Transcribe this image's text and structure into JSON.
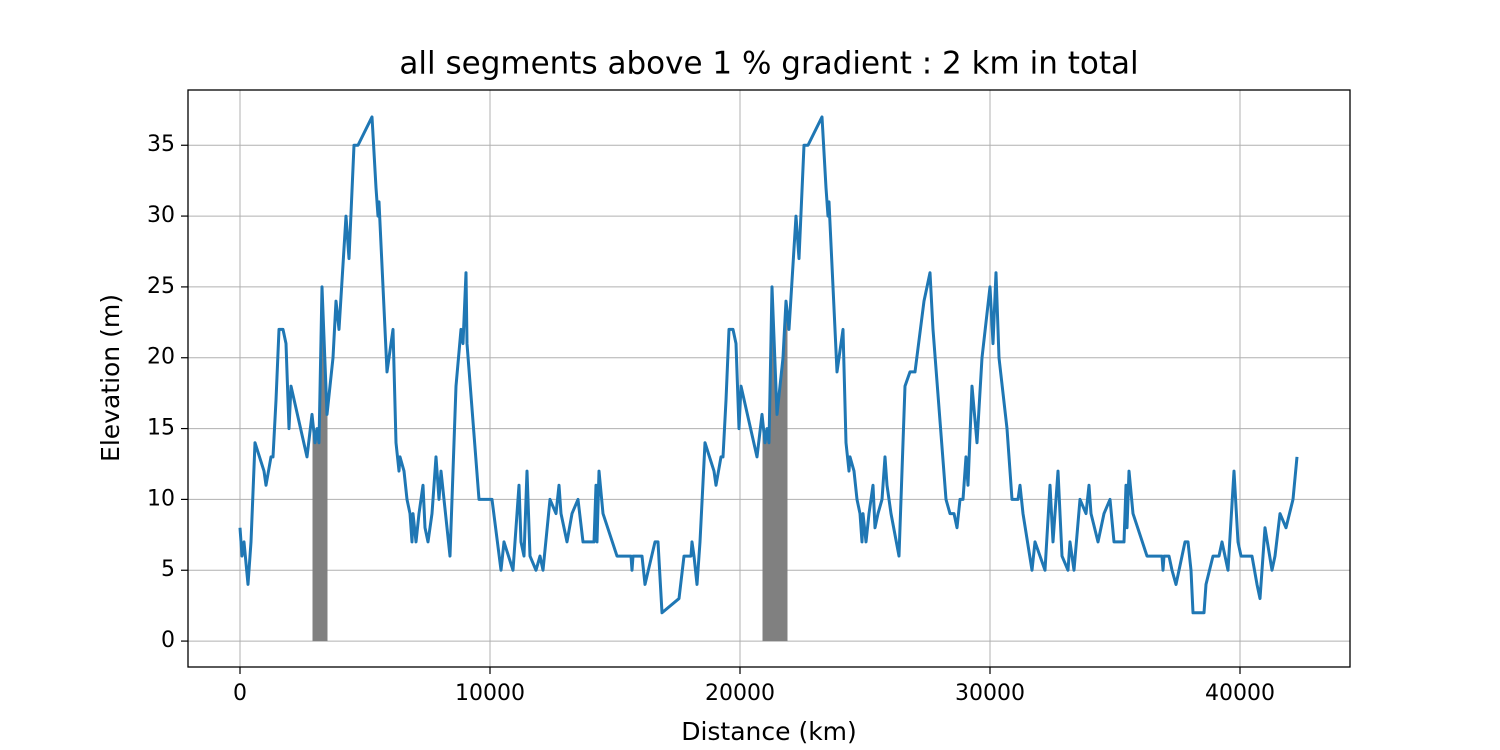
{
  "chart_data": {
    "type": "line",
    "title": "all segments above 1 % gradient : 2 km in total",
    "x_label": "Distance (km)",
    "y_label": "Elevation (m)",
    "x": [
      0,
      80,
      160,
      320,
      440,
      600,
      960,
      1040,
      1240,
      1320,
      1440,
      1560,
      1720,
      1840,
      1960,
      2040,
      2680,
      2880,
      3000,
      3080,
      3160,
      3280,
      3480,
      3720,
      3840,
      3960,
      4240,
      4360,
      4560,
      4720,
      5280,
      5440,
      5520,
      5560,
      5880,
      6120,
      6240,
      6360,
      6400,
      6560,
      6680,
      6800,
      6880,
      6920,
      7040,
      7160,
      7320,
      7400,
      7520,
      7680,
      7840,
      7960,
      8040,
      8400,
      8640,
      8840,
      8920,
      9040,
      9080,
      9560,
      9920,
      10080,
      10440,
      10560,
      10920,
      11160,
      11240,
      11360,
      11480,
      11600,
      11840,
      12000,
      12120,
      12400,
      12640,
      12760,
      12840,
      13080,
      13280,
      13520,
      13720,
      14160,
      14240,
      14280,
      14360,
      14520,
      15080,
      15640,
      15680,
      15720,
      16080,
      16200,
      16600,
      16720,
      16880,
      17560,
      17760,
      18040,
      18080,
      18160,
      18280,
      18400,
      18600,
      18960,
      19040,
      19240,
      19320,
      19440,
      19560,
      19720,
      19840,
      19960,
      20040,
      20680,
      20880,
      21000,
      21080,
      21160,
      21280,
      21480,
      21720,
      21840,
      21960,
      22240,
      22360,
      22560,
      22720,
      23280,
      23440,
      23520,
      23560,
      23880,
      24120,
      24240,
      24360,
      24400,
      24560,
      24680,
      24800,
      24880,
      24920,
      25040,
      25160,
      25320,
      25400,
      25520,
      25680,
      25800,
      25880,
      26040,
      26360,
      26600,
      26800,
      27000,
      27360,
      27480,
      27600,
      27720,
      28240,
      28400,
      28560,
      28680,
      28800,
      28920,
      29040,
      29120,
      29280,
      29480,
      29680,
      30000,
      30120,
      30240,
      30360,
      30680,
      30880,
      31120,
      31200,
      31320,
      31680,
      31800,
      32200,
      32400,
      32520,
      32720,
      32880,
      33120,
      33200,
      33360,
      33600,
      33840,
      33960,
      34040,
      34320,
      34560,
      34800,
      34960,
      35360,
      35440,
      35480,
      35560,
      35720,
      36280,
      36880,
      36920,
      36960,
      37160,
      37280,
      37440,
      37800,
      37920,
      38040,
      38120,
      38560,
      38640,
      38920,
      39160,
      39280,
      39400,
      39520,
      39760,
      39920,
      40040,
      40480,
      40680,
      40800,
      41000,
      41280,
      41400,
      41600,
      41840,
      42120,
      42280
    ],
    "series": [
      {
        "color": "#1f77b4",
        "values": [
          8,
          6,
          7,
          4,
          7,
          14,
          12,
          11,
          13,
          13,
          17,
          22,
          22,
          21,
          15,
          18,
          13,
          16,
          14,
          15,
          14,
          25,
          16,
          20,
          24,
          22,
          30,
          27,
          35,
          35,
          37,
          32,
          30,
          31,
          19,
          22,
          14,
          12,
          13,
          12,
          10,
          9,
          7,
          9,
          7,
          9,
          11,
          8,
          7,
          9,
          13,
          10,
          12,
          6,
          18,
          22,
          21,
          26,
          21,
          10,
          10,
          10,
          5,
          7,
          5,
          11,
          7,
          6,
          12,
          6,
          5,
          6,
          5,
          10,
          9,
          11,
          9,
          7,
          9,
          10,
          7,
          7,
          11,
          7,
          12,
          9,
          6,
          6,
          5,
          6,
          6,
          4,
          7,
          7,
          2,
          3,
          6,
          6,
          7,
          6,
          4,
          7,
          14,
          12,
          11,
          13,
          13,
          17,
          22,
          22,
          21,
          15,
          18,
          13,
          16,
          14,
          15,
          14,
          25,
          16,
          20,
          24,
          22,
          30,
          27,
          35,
          35,
          37,
          32,
          30,
          31,
          19,
          22,
          14,
          12,
          13,
          12,
          10,
          9,
          7,
          9,
          7,
          9,
          11,
          8,
          9,
          10,
          13,
          11,
          9,
          6,
          18,
          19,
          19,
          24,
          25,
          26,
          22,
          10,
          9,
          9,
          8,
          10,
          10,
          13,
          11,
          18,
          14,
          20,
          25,
          21,
          26,
          20,
          15,
          10,
          10,
          11,
          9,
          5,
          7,
          5,
          11,
          7,
          12,
          6,
          5,
          7,
          5,
          10,
          9,
          11,
          9,
          7,
          9,
          10,
          7,
          7,
          11,
          8,
          12,
          9,
          6,
          6,
          5,
          6,
          6,
          5,
          4,
          7,
          7,
          5,
          2,
          2,
          4,
          6,
          6,
          7,
          6,
          5,
          12,
          7,
          6,
          6,
          4,
          3,
          8,
          5,
          6,
          9,
          8,
          10,
          13
        ]
      }
    ],
    "highlight": {
      "color": "#808080",
      "ranges": [
        [
          2900,
          3500
        ],
        [
          20900,
          21900
        ]
      ]
    },
    "xlim": [
      -2080,
      44400
    ],
    "ylim": [
      -1.83,
      38.9
    ],
    "xticks": [
      0,
      10000,
      20000,
      30000,
      40000
    ],
    "yticks": [
      0,
      5,
      10,
      15,
      20,
      25,
      30,
      35
    ],
    "grid": true
  }
}
